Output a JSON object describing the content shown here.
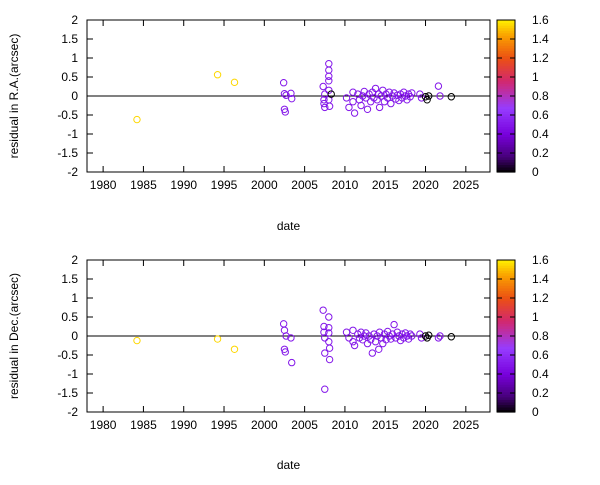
{
  "chart_data": [
    {
      "type": "scatter",
      "xlabel": "date",
      "ylabel": "residual in R.A.(arcsec)",
      "xlim": [
        1978,
        2028
      ],
      "ylim": [
        -2,
        2
      ],
      "x_ticks": [
        "1980",
        "1985",
        "1990",
        "1995",
        "2000",
        "2005",
        "2010",
        "2015",
        "2020",
        "2025"
      ],
      "y_ticks": [
        "-2",
        "-1.5",
        "-1",
        "-0.5",
        "0",
        "0.5",
        "1",
        "1.5",
        "2"
      ],
      "colorbar": {
        "range": [
          0,
          1.6
        ],
        "ticks": [
          "0",
          "0.2",
          "0.4",
          "0.6",
          "0.8",
          "1",
          "1.2",
          "1.4",
          "1.6"
        ]
      },
      "zero_line": true,
      "points": [
        {
          "x": 1984.2,
          "y": -0.62,
          "c": 1.55
        },
        {
          "x": 1994.2,
          "y": 0.56,
          "c": 1.55
        },
        {
          "x": 1996.3,
          "y": 0.36,
          "c": 1.55
        },
        {
          "x": 2002.4,
          "y": 0.35,
          "c": 0.5
        },
        {
          "x": 2002.5,
          "y": 0.06,
          "c": 0.5
        },
        {
          "x": 2002.5,
          "y": -0.35,
          "c": 0.5
        },
        {
          "x": 2002.6,
          "y": -0.42,
          "c": 0.5
        },
        {
          "x": 2002.7,
          "y": 0.02,
          "c": 0.5
        },
        {
          "x": 2003.3,
          "y": 0.07,
          "c": 0.5
        },
        {
          "x": 2003.4,
          "y": -0.07,
          "c": 0.5
        },
        {
          "x": 2007.3,
          "y": 0.25,
          "c": 0.5
        },
        {
          "x": 2007.4,
          "y": -0.1,
          "c": 0.5
        },
        {
          "x": 2007.4,
          "y": -0.2,
          "c": 0.5
        },
        {
          "x": 2007.5,
          "y": -0.3,
          "c": 0.5
        },
        {
          "x": 2007.5,
          "y": 0.05,
          "c": 0.5
        },
        {
          "x": 2008.0,
          "y": 0.85,
          "c": 0.5
        },
        {
          "x": 2008.0,
          "y": 0.68,
          "c": 0.5
        },
        {
          "x": 2008.0,
          "y": 0.52,
          "c": 0.5
        },
        {
          "x": 2008.0,
          "y": 0.4,
          "c": 0.5
        },
        {
          "x": 2008.0,
          "y": 0.15,
          "c": 0.5
        },
        {
          "x": 2008.0,
          "y": -0.1,
          "c": 0.5
        },
        {
          "x": 2008.1,
          "y": -0.27,
          "c": 0.5
        },
        {
          "x": 2008.3,
          "y": 0.05,
          "c": 0.0
        },
        {
          "x": 2010.2,
          "y": -0.05,
          "c": 0.5
        },
        {
          "x": 2010.5,
          "y": -0.3,
          "c": 0.5
        },
        {
          "x": 2011.0,
          "y": -0.15,
          "c": 0.5
        },
        {
          "x": 2011.0,
          "y": 0.1,
          "c": 0.5
        },
        {
          "x": 2011.2,
          "y": -0.45,
          "c": 0.5
        },
        {
          "x": 2011.6,
          "y": 0.05,
          "c": 0.5
        },
        {
          "x": 2011.8,
          "y": -0.1,
          "c": 0.5
        },
        {
          "x": 2012.0,
          "y": -0.25,
          "c": 0.5
        },
        {
          "x": 2012.2,
          "y": 0.0,
          "c": 0.5
        },
        {
          "x": 2012.4,
          "y": 0.12,
          "c": 0.5
        },
        {
          "x": 2012.6,
          "y": -0.05,
          "c": 0.5
        },
        {
          "x": 2012.8,
          "y": -0.35,
          "c": 0.5
        },
        {
          "x": 2013.0,
          "y": 0.05,
          "c": 0.5
        },
        {
          "x": 2013.2,
          "y": -0.15,
          "c": 0.5
        },
        {
          "x": 2013.4,
          "y": 0.1,
          "c": 0.5
        },
        {
          "x": 2013.6,
          "y": -0.05,
          "c": 0.5
        },
        {
          "x": 2013.8,
          "y": 0.2,
          "c": 0.5
        },
        {
          "x": 2014.0,
          "y": -0.1,
          "c": 0.5
        },
        {
          "x": 2014.2,
          "y": 0.05,
          "c": 0.5
        },
        {
          "x": 2014.3,
          "y": -0.3,
          "c": 0.5
        },
        {
          "x": 2014.5,
          "y": 0.0,
          "c": 0.5
        },
        {
          "x": 2014.7,
          "y": 0.15,
          "c": 0.5
        },
        {
          "x": 2014.9,
          "y": -0.15,
          "c": 0.5
        },
        {
          "x": 2015.1,
          "y": 0.05,
          "c": 0.5
        },
        {
          "x": 2015.3,
          "y": -0.05,
          "c": 0.5
        },
        {
          "x": 2015.5,
          "y": 0.1,
          "c": 0.5
        },
        {
          "x": 2015.7,
          "y": -0.2,
          "c": 0.5
        },
        {
          "x": 2015.9,
          "y": 0.0,
          "c": 0.5
        },
        {
          "x": 2016.1,
          "y": 0.08,
          "c": 0.5
        },
        {
          "x": 2016.3,
          "y": -0.08,
          "c": 0.5
        },
        {
          "x": 2016.5,
          "y": 0.02,
          "c": 0.5
        },
        {
          "x": 2016.7,
          "y": -0.12,
          "c": 0.5
        },
        {
          "x": 2016.9,
          "y": 0.05,
          "c": 0.5
        },
        {
          "x": 2017.1,
          "y": -0.05,
          "c": 0.5
        },
        {
          "x": 2017.3,
          "y": 0.1,
          "c": 0.5
        },
        {
          "x": 2017.5,
          "y": 0.0,
          "c": 0.5
        },
        {
          "x": 2017.7,
          "y": -0.1,
          "c": 0.5
        },
        {
          "x": 2017.9,
          "y": 0.05,
          "c": 0.5
        },
        {
          "x": 2018.1,
          "y": -0.02,
          "c": 0.5
        },
        {
          "x": 2018.3,
          "y": 0.08,
          "c": 0.5
        },
        {
          "x": 2019.3,
          "y": 0.05,
          "c": 0.5
        },
        {
          "x": 2019.5,
          "y": -0.05,
          "c": 0.5
        },
        {
          "x": 2020.0,
          "y": -0.02,
          "c": 0.0
        },
        {
          "x": 2020.2,
          "y": -0.1,
          "c": 0.0
        },
        {
          "x": 2020.4,
          "y": 0.0,
          "c": 0.0
        },
        {
          "x": 2021.6,
          "y": 0.26,
          "c": 0.5
        },
        {
          "x": 2021.8,
          "y": 0.0,
          "c": 0.5
        },
        {
          "x": 2023.2,
          "y": -0.02,
          "c": 0.0
        }
      ]
    },
    {
      "type": "scatter",
      "xlabel": "date",
      "ylabel": "residual in Dec.(arcsec)",
      "xlim": [
        1978,
        2028
      ],
      "ylim": [
        -2,
        2
      ],
      "x_ticks": [
        "1980",
        "1985",
        "1990",
        "1995",
        "2000",
        "2005",
        "2010",
        "2015",
        "2020",
        "2025"
      ],
      "y_ticks": [
        "-2",
        "-1.5",
        "-1",
        "-0.5",
        "0",
        "0.5",
        "1",
        "1.5",
        "2"
      ],
      "colorbar": {
        "range": [
          0,
          1.6
        ],
        "ticks": [
          "0",
          "0.2",
          "0.4",
          "0.6",
          "0.8",
          "1",
          "1.2",
          "1.4",
          "1.6"
        ]
      },
      "zero_line": true,
      "points": [
        {
          "x": 1984.2,
          "y": -0.12,
          "c": 1.55
        },
        {
          "x": 1994.2,
          "y": -0.08,
          "c": 1.55
        },
        {
          "x": 1996.3,
          "y": -0.35,
          "c": 1.55
        },
        {
          "x": 2002.4,
          "y": 0.32,
          "c": 0.5
        },
        {
          "x": 2002.5,
          "y": 0.15,
          "c": 0.5
        },
        {
          "x": 2002.5,
          "y": -0.35,
          "c": 0.5
        },
        {
          "x": 2002.6,
          "y": -0.42,
          "c": 0.5
        },
        {
          "x": 2002.7,
          "y": 0.0,
          "c": 0.5
        },
        {
          "x": 2003.3,
          "y": -0.05,
          "c": 0.5
        },
        {
          "x": 2003.4,
          "y": -0.7,
          "c": 0.5
        },
        {
          "x": 2007.3,
          "y": 0.68,
          "c": 0.5
        },
        {
          "x": 2007.4,
          "y": 0.25,
          "c": 0.5
        },
        {
          "x": 2007.4,
          "y": 0.1,
          "c": 0.5
        },
        {
          "x": 2007.5,
          "y": -0.05,
          "c": 0.5
        },
        {
          "x": 2007.5,
          "y": -0.45,
          "c": 0.5
        },
        {
          "x": 2007.5,
          "y": -1.4,
          "c": 0.5
        },
        {
          "x": 2008.0,
          "y": 0.5,
          "c": 0.5
        },
        {
          "x": 2008.0,
          "y": 0.22,
          "c": 0.5
        },
        {
          "x": 2008.0,
          "y": 0.08,
          "c": 0.5
        },
        {
          "x": 2008.0,
          "y": -0.15,
          "c": 0.5
        },
        {
          "x": 2008.1,
          "y": -0.32,
          "c": 0.5
        },
        {
          "x": 2008.1,
          "y": -0.62,
          "c": 0.5
        },
        {
          "x": 2010.2,
          "y": 0.1,
          "c": 0.5
        },
        {
          "x": 2010.5,
          "y": -0.05,
          "c": 0.5
        },
        {
          "x": 2011.0,
          "y": 0.15,
          "c": 0.5
        },
        {
          "x": 2011.0,
          "y": -0.15,
          "c": 0.5
        },
        {
          "x": 2011.2,
          "y": -0.25,
          "c": 0.5
        },
        {
          "x": 2011.6,
          "y": 0.05,
          "c": 0.5
        },
        {
          "x": 2011.8,
          "y": -0.05,
          "c": 0.5
        },
        {
          "x": 2012.0,
          "y": 0.1,
          "c": 0.5
        },
        {
          "x": 2012.2,
          "y": -0.1,
          "c": 0.5
        },
        {
          "x": 2012.4,
          "y": 0.0,
          "c": 0.5
        },
        {
          "x": 2012.6,
          "y": 0.08,
          "c": 0.5
        },
        {
          "x": 2012.8,
          "y": -0.2,
          "c": 0.5
        },
        {
          "x": 2013.0,
          "y": 0.0,
          "c": 0.5
        },
        {
          "x": 2013.2,
          "y": -0.1,
          "c": 0.5
        },
        {
          "x": 2013.4,
          "y": -0.45,
          "c": 0.5
        },
        {
          "x": 2013.6,
          "y": 0.05,
          "c": 0.5
        },
        {
          "x": 2013.8,
          "y": -0.15,
          "c": 0.5
        },
        {
          "x": 2014.0,
          "y": 0.0,
          "c": 0.5
        },
        {
          "x": 2014.2,
          "y": -0.35,
          "c": 0.5
        },
        {
          "x": 2014.3,
          "y": 0.1,
          "c": 0.5
        },
        {
          "x": 2014.5,
          "y": -0.05,
          "c": 0.5
        },
        {
          "x": 2014.7,
          "y": -0.2,
          "c": 0.5
        },
        {
          "x": 2014.9,
          "y": 0.05,
          "c": 0.5
        },
        {
          "x": 2015.1,
          "y": -0.1,
          "c": 0.5
        },
        {
          "x": 2015.3,
          "y": 0.12,
          "c": 0.5
        },
        {
          "x": 2015.5,
          "y": 0.0,
          "c": 0.5
        },
        {
          "x": 2015.7,
          "y": -0.08,
          "c": 0.5
        },
        {
          "x": 2015.9,
          "y": 0.05,
          "c": 0.5
        },
        {
          "x": 2016.1,
          "y": 0.3,
          "c": 0.5
        },
        {
          "x": 2016.3,
          "y": -0.05,
          "c": 0.5
        },
        {
          "x": 2016.5,
          "y": 0.1,
          "c": 0.5
        },
        {
          "x": 2016.7,
          "y": 0.0,
          "c": 0.5
        },
        {
          "x": 2016.9,
          "y": -0.12,
          "c": 0.5
        },
        {
          "x": 2017.1,
          "y": 0.05,
          "c": 0.5
        },
        {
          "x": 2017.3,
          "y": -0.05,
          "c": 0.5
        },
        {
          "x": 2017.5,
          "y": 0.08,
          "c": 0.5
        },
        {
          "x": 2017.7,
          "y": 0.0,
          "c": 0.5
        },
        {
          "x": 2017.9,
          "y": -0.08,
          "c": 0.5
        },
        {
          "x": 2018.1,
          "y": 0.05,
          "c": 0.5
        },
        {
          "x": 2018.3,
          "y": 0.0,
          "c": 0.5
        },
        {
          "x": 2019.3,
          "y": 0.05,
          "c": 0.5
        },
        {
          "x": 2019.5,
          "y": -0.05,
          "c": 0.5
        },
        {
          "x": 2020.0,
          "y": 0.0,
          "c": 0.0
        },
        {
          "x": 2020.2,
          "y": -0.05,
          "c": 0.0
        },
        {
          "x": 2020.4,
          "y": 0.02,
          "c": 0.0
        },
        {
          "x": 2021.6,
          "y": -0.05,
          "c": 0.5
        },
        {
          "x": 2021.8,
          "y": 0.0,
          "c": 0.5
        },
        {
          "x": 2023.2,
          "y": -0.02,
          "c": 0.0
        }
      ]
    }
  ]
}
